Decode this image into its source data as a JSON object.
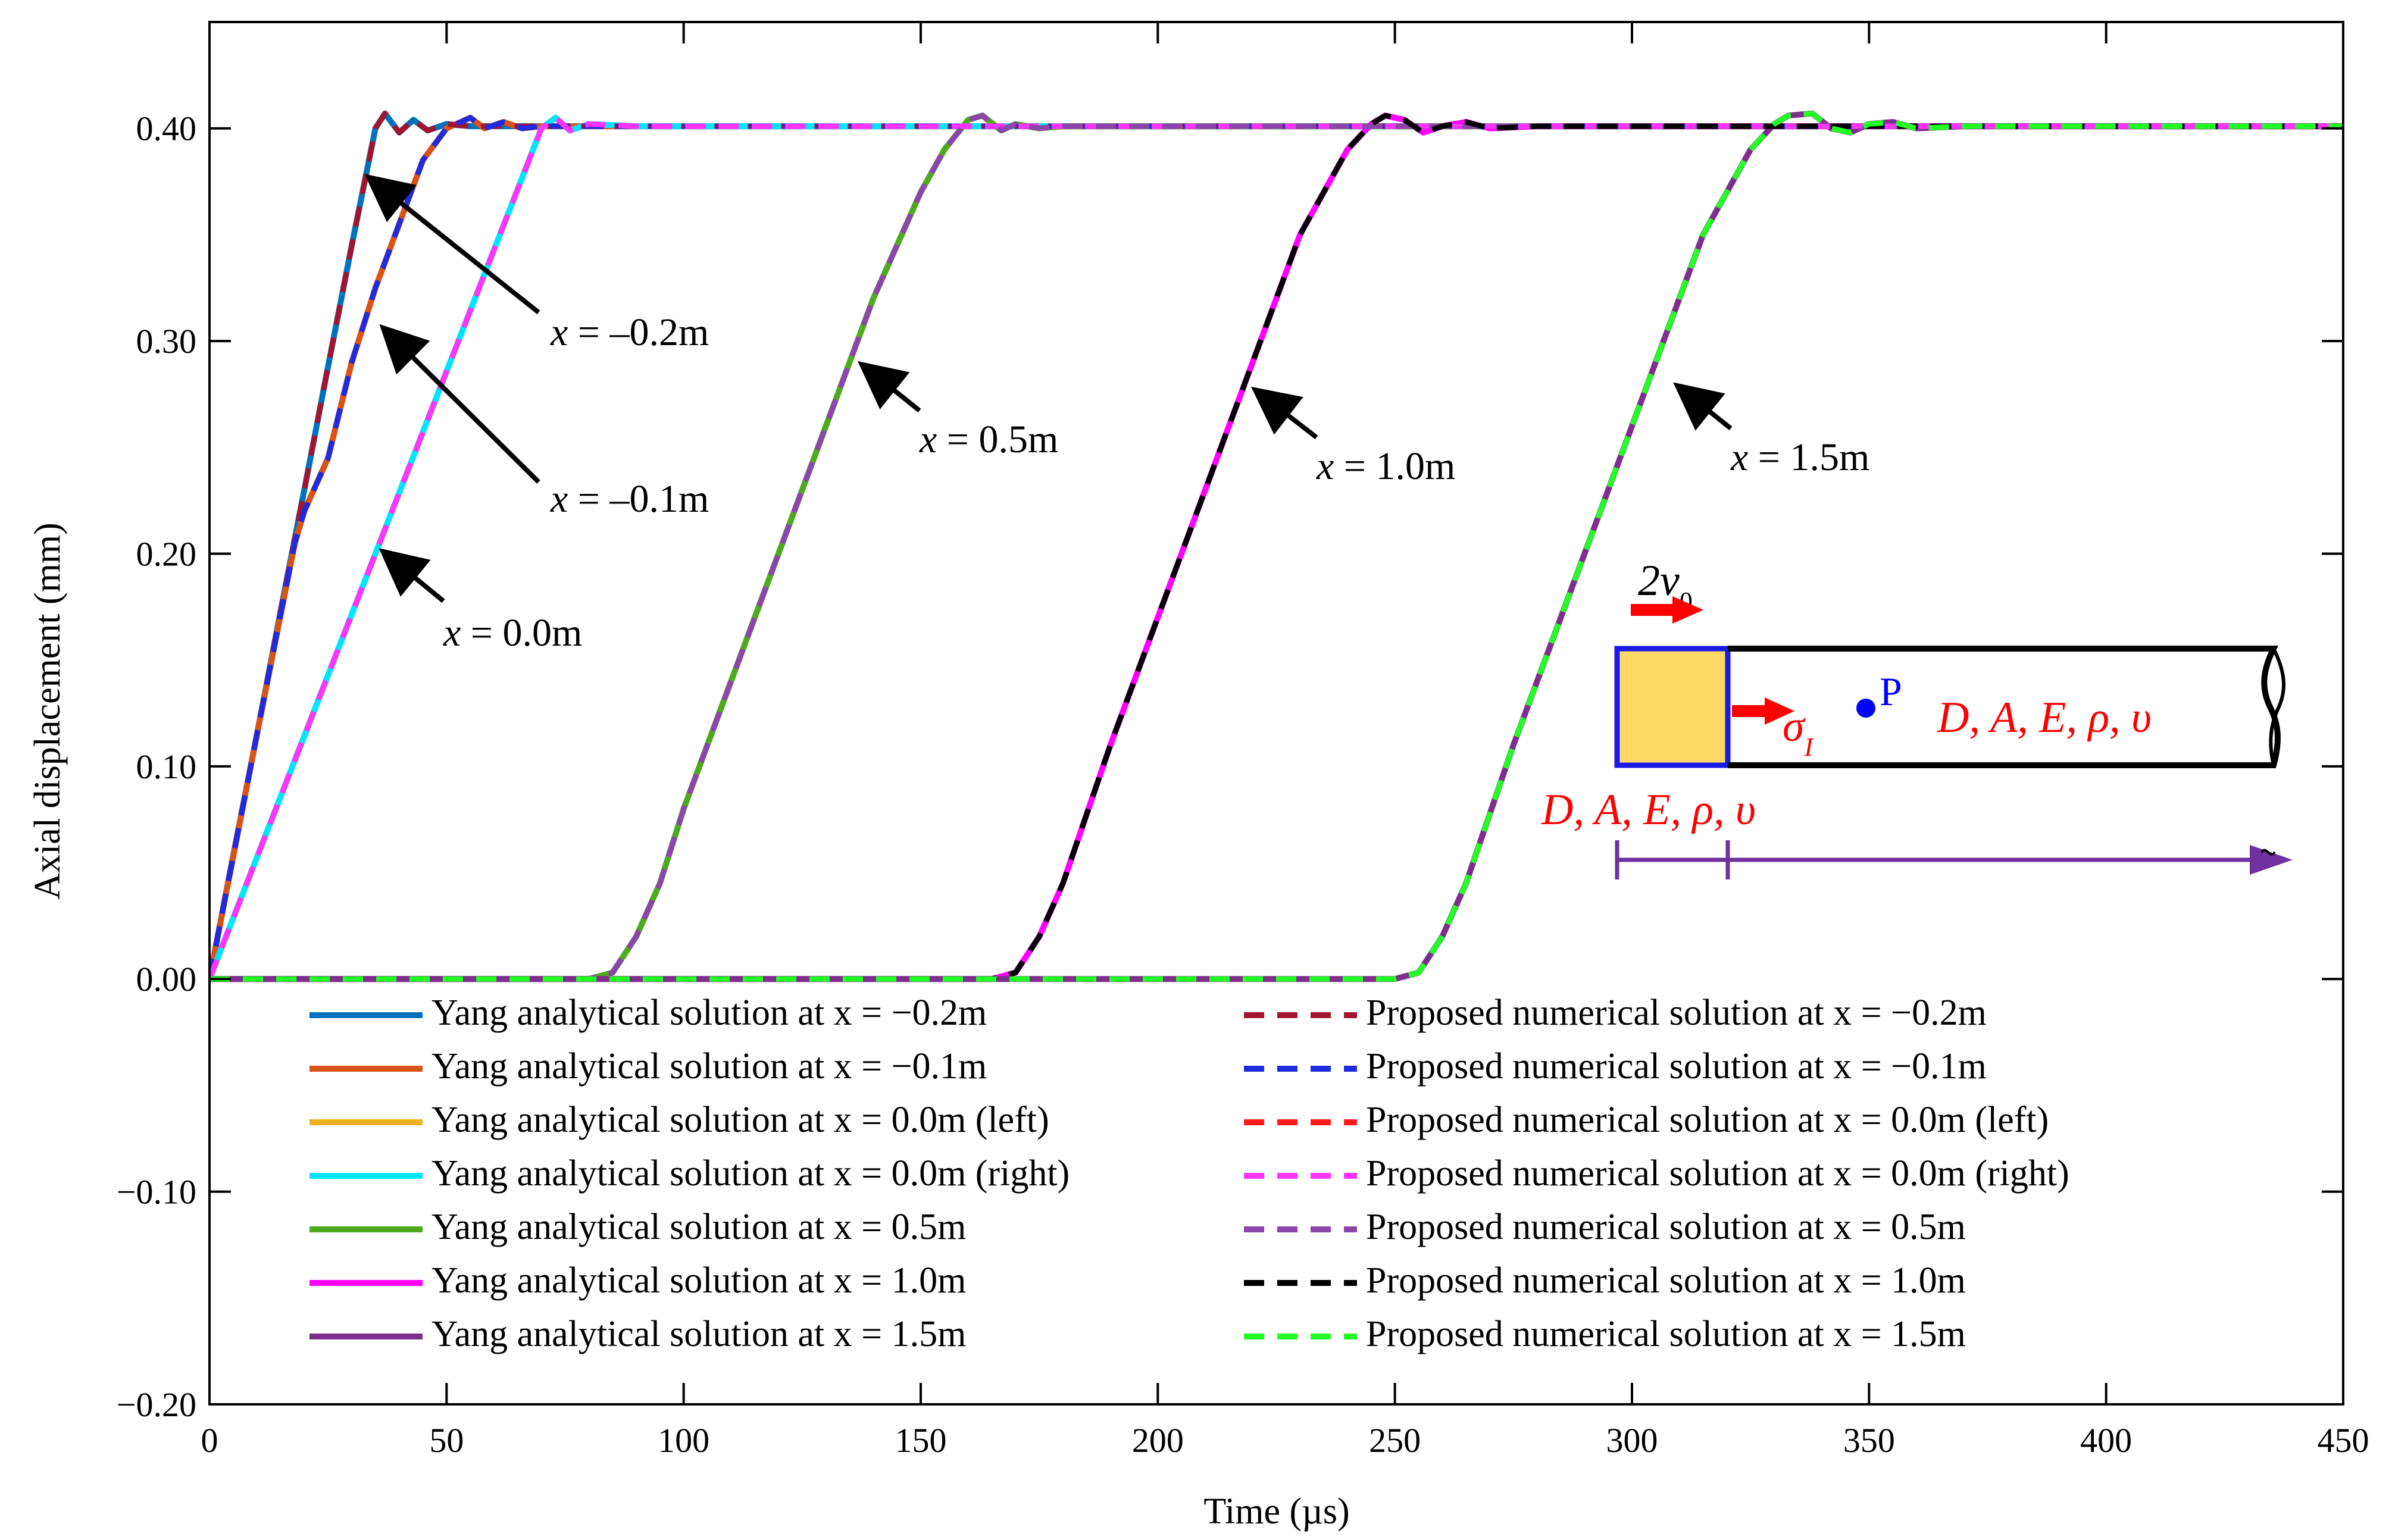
{
  "chart_data": {
    "type": "line",
    "xlabel": "Time (µs)",
    "ylabel": "Axial displacement (mm)",
    "xlim": [
      0,
      450
    ],
    "ylim": [
      -0.2,
      0.45
    ],
    "xticks": [
      0,
      50,
      100,
      150,
      200,
      250,
      300,
      350,
      400,
      450
    ],
    "xtick_labels": [
      "0",
      "50",
      "100",
      "150",
      "200",
      "250",
      "300",
      "350",
      "400",
      "450"
    ],
    "yticks": [
      -0.2,
      -0.1,
      0.0,
      0.1,
      0.2,
      0.3,
      0.4
    ],
    "ytick_labels": [
      "−0.20",
      "−0.10",
      "0.00",
      "0.10",
      "0.20",
      "0.30",
      "0.40"
    ],
    "grid": false,
    "legend_position": "lower-center",
    "series": [
      {
        "name": "Yang analytical solution at x = −0.2m",
        "color": "#0072BD",
        "dash": "solid",
        "x": [
          0,
          5,
          10,
          15,
          20,
          25,
          30,
          35,
          37,
          40,
          43,
          46,
          50,
          55,
          60,
          70,
          450
        ],
        "y": [
          0,
          0.058,
          0.115,
          0.173,
          0.23,
          0.288,
          0.345,
          0.4,
          0.407,
          0.398,
          0.404,
          0.399,
          0.402,
          0.401,
          0.401,
          0.401,
          0.401
        ]
      },
      {
        "name": "Yang analytical solution at x = −0.1m",
        "color": "#D95319",
        "dash": "solid",
        "x": [
          0,
          10,
          18,
          20,
          25,
          30,
          35,
          40,
          45,
          50,
          55,
          58,
          62,
          66,
          70,
          80,
          450
        ],
        "y": [
          0,
          0.115,
          0.205,
          0.22,
          0.245,
          0.29,
          0.325,
          0.355,
          0.385,
          0.4,
          0.405,
          0.4,
          0.403,
          0.4,
          0.401,
          0.401,
          0.401
        ]
      },
      {
        "name": "Yang analytical solution at x = 0.0m (left)",
        "color": "#EDB120",
        "dash": "solid",
        "x": [
          0,
          70,
          73,
          76,
          80,
          90,
          450
        ],
        "y": [
          0,
          0.4,
          0.405,
          0.399,
          0.402,
          0.401,
          0.401
        ]
      },
      {
        "name": "Yang analytical solution at x = 0.0m (right)",
        "color": "#00E5FF",
        "dash": "solid",
        "x": [
          0,
          35,
          70,
          73,
          76,
          80,
          90,
          450
        ],
        "y": [
          0,
          0.2,
          0.4,
          0.405,
          0.399,
          0.402,
          0.401,
          0.401
        ]
      },
      {
        "name": "Yang analytical solution at x = 0.5m",
        "color": "#4DAA1E",
        "dash": "solid",
        "x": [
          0,
          80,
          85,
          90,
          95,
          100,
          110,
          120,
          130,
          140,
          150,
          155,
          160,
          163,
          167,
          170,
          175,
          180,
          190,
          450
        ],
        "y": [
          0,
          0,
          0.003,
          0.02,
          0.045,
          0.08,
          0.14,
          0.2,
          0.26,
          0.32,
          0.37,
          0.39,
          0.404,
          0.406,
          0.399,
          0.402,
          0.4,
          0.401,
          0.401,
          0.401
        ]
      },
      {
        "name": "Yang analytical solution at x = 1.0m",
        "color": "#FF00FF",
        "dash": "solid",
        "x": [
          0,
          165,
          170,
          175,
          180,
          190,
          200,
          210,
          220,
          230,
          240,
          245,
          248,
          252,
          256,
          260,
          265,
          270,
          280,
          450
        ],
        "y": [
          0,
          0,
          0.003,
          0.02,
          0.045,
          0.11,
          0.17,
          0.23,
          0.29,
          0.35,
          0.39,
          0.402,
          0.406,
          0.404,
          0.398,
          0.401,
          0.403,
          0.4,
          0.401,
          0.401
        ]
      },
      {
        "name": "Yang analytical solution at x = 1.5m",
        "color": "#7E2F8E",
        "dash": "solid",
        "x": [
          0,
          250,
          255,
          260,
          265,
          275,
          285,
          295,
          305,
          315,
          325,
          330,
          333,
          338,
          342,
          346,
          350,
          355,
          360,
          370,
          450
        ],
        "y": [
          0,
          0,
          0.003,
          0.02,
          0.045,
          0.11,
          0.17,
          0.23,
          0.29,
          0.35,
          0.39,
          0.402,
          0.406,
          0.407,
          0.4,
          0.398,
          0.402,
          0.403,
          0.4,
          0.401,
          0.401
        ]
      },
      {
        "name": "Proposed numerical solution at x = −0.2m",
        "color": "#A2142F",
        "dash": "dashed",
        "x": [
          0,
          5,
          10,
          15,
          20,
          25,
          30,
          35,
          37,
          40,
          43,
          46,
          50,
          55,
          60,
          70,
          450
        ],
        "y": [
          0,
          0.058,
          0.115,
          0.173,
          0.23,
          0.288,
          0.345,
          0.4,
          0.407,
          0.398,
          0.404,
          0.399,
          0.402,
          0.401,
          0.401,
          0.401,
          0.401
        ]
      },
      {
        "name": "Proposed numerical solution at x = −0.1m",
        "color": "#1F2BE0",
        "dash": "dashed",
        "x": [
          0,
          10,
          18,
          20,
          25,
          30,
          35,
          40,
          45,
          50,
          55,
          58,
          62,
          66,
          70,
          80,
          450
        ],
        "y": [
          0,
          0.115,
          0.205,
          0.22,
          0.245,
          0.29,
          0.325,
          0.355,
          0.385,
          0.4,
          0.405,
          0.4,
          0.403,
          0.4,
          0.401,
          0.401,
          0.401
        ]
      },
      {
        "name": "Proposed numerical solution at x = 0.0m (left)",
        "color": "#FF1A1A",
        "dash": "dashed",
        "x": [
          0,
          70,
          73,
          76,
          80,
          90,
          450
        ],
        "y": [
          0,
          0.4,
          0.405,
          0.399,
          0.402,
          0.401,
          0.401
        ]
      },
      {
        "name": "Proposed numerical solution at x = 0.0m (right)",
        "color": "#FF33FF",
        "dash": "dashed",
        "x": [
          0,
          35,
          70,
          73,
          76,
          80,
          90,
          450
        ],
        "y": [
          0,
          0.2,
          0.4,
          0.405,
          0.399,
          0.402,
          0.401,
          0.401
        ]
      },
      {
        "name": "Proposed numerical solution at x = 0.5m",
        "color": "#8E44AD",
        "dash": "dashed",
        "x": [
          0,
          80,
          85,
          90,
          95,
          100,
          110,
          120,
          130,
          140,
          150,
          155,
          160,
          163,
          167,
          170,
          175,
          180,
          190,
          450
        ],
        "y": [
          0,
          0,
          0.003,
          0.02,
          0.045,
          0.08,
          0.14,
          0.2,
          0.26,
          0.32,
          0.37,
          0.39,
          0.404,
          0.406,
          0.399,
          0.402,
          0.4,
          0.401,
          0.401,
          0.401
        ]
      },
      {
        "name": "Proposed numerical solution at x = 1.0m",
        "color": "#000000",
        "dash": "dashed",
        "x": [
          0,
          165,
          170,
          175,
          180,
          190,
          200,
          210,
          220,
          230,
          240,
          245,
          248,
          252,
          256,
          260,
          265,
          270,
          280,
          450
        ],
        "y": [
          0,
          0,
          0.003,
          0.02,
          0.045,
          0.11,
          0.17,
          0.23,
          0.29,
          0.35,
          0.39,
          0.402,
          0.406,
          0.404,
          0.398,
          0.401,
          0.403,
          0.4,
          0.401,
          0.401
        ]
      },
      {
        "name": "Proposed numerical solution at x = 1.5m",
        "color": "#22FF22",
        "dash": "dashed",
        "x": [
          0,
          250,
          255,
          260,
          265,
          275,
          285,
          295,
          305,
          315,
          325,
          330,
          333,
          338,
          342,
          346,
          350,
          355,
          360,
          370,
          450
        ],
        "y": [
          0,
          0,
          0.003,
          0.02,
          0.045,
          0.11,
          0.17,
          0.23,
          0.29,
          0.35,
          0.39,
          0.402,
          0.406,
          0.407,
          0.4,
          0.398,
          0.402,
          0.403,
          0.4,
          0.401,
          0.401
        ]
      }
    ],
    "annotations": [
      {
        "var": "x",
        "label": " = –0.2m",
        "tip_x": 33,
        "tip_y": 0.378
      },
      {
        "var": "x",
        "label": " = –0.1m",
        "tip_x": 36,
        "tip_y": 0.307
      },
      {
        "var": "x",
        "label": " = 0.0m",
        "tip_x": 36,
        "tip_y": 0.202
      },
      {
        "var": "x",
        "label": " = 0.5m",
        "tip_x": 137,
        "tip_y": 0.29
      },
      {
        "var": "x",
        "label": " = 1.0m",
        "tip_x": 220,
        "tip_y": 0.278
      },
      {
        "var": "x",
        "label": " = 1.5m",
        "tip_x": 309,
        "tip_y": 0.28
      }
    ],
    "inset": {
      "velocity_label": "2v",
      "velocity_sub": "0",
      "stress_label": "σ",
      "stress_sub": "I",
      "point_label": "P",
      "bar_props": "D, A, E, ρ, υ",
      "striker_props": "D, A, E, ρ, υ",
      "colors": {
        "striker_fill": "#FFD966",
        "striker_border": "#1A1AE6",
        "arrow": "#FF0000",
        "point": "#0000FF",
        "dimension": "#7030A0"
      }
    }
  }
}
